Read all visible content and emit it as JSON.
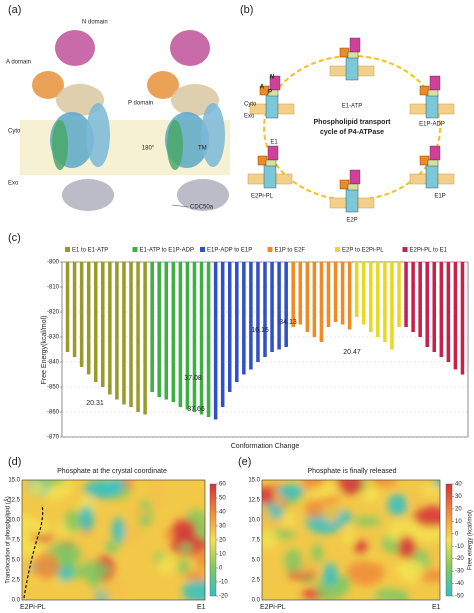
{
  "panels": {
    "a": {
      "label": "(a)",
      "texts": [
        "N domain",
        "A domain",
        "P domain",
        "Cyto",
        "Exo",
        "180°",
        "TM",
        "CDC50a"
      ]
    },
    "b": {
      "label": "(b)",
      "title": [
        "Phospholipid transport",
        "cycle of P4-ATPase"
      ],
      "states": [
        "E1-ATP",
        "E1P-ADP",
        "E1P",
        "E2P",
        "E2Pi-PL",
        "E1"
      ],
      "sides": [
        "Cyto",
        "Exo"
      ],
      "domains": [
        "N",
        "A",
        "P"
      ]
    },
    "c": {
      "label": "(c)"
    },
    "d": {
      "label": "(d)",
      "title": "Phosphate at the crystal coordinate",
      "y_label": "Translocation of phospholipid (Å)",
      "yticks": [
        "0.0",
        "2.5",
        "5.0",
        "7.5",
        "10.0",
        "12.5",
        "15.0"
      ],
      "x_labels": [
        "E2Pi-PL",
        "E1"
      ],
      "colorbar_ticks": [
        60,
        50,
        40,
        30,
        20,
        10,
        0,
        -10,
        -20
      ]
    },
    "e": {
      "label": "(e)",
      "title": "Phosphate is finally released",
      "yticks": [
        "0.0",
        "2.5",
        "5.0",
        "7.5",
        "10.0",
        "12.5",
        "15.0"
      ],
      "x_labels": [
        "E2Pi-PL",
        "E1"
      ],
      "colorbar_ticks": [
        40,
        30,
        20,
        10,
        0,
        -10,
        -20,
        -30,
        -40,
        -50
      ],
      "colorbar_label": "Free energy (kcal/mol)"
    }
  },
  "chart_data": {
    "type": "bar",
    "y_label": "Free Energy(kcal/mol)",
    "x_label": "Conformation Change",
    "ylim": [
      -870,
      -800
    ],
    "yticks": [
      -870,
      -860,
      -850,
      -840,
      -830,
      -820,
      -810,
      -800
    ],
    "grid": true,
    "series": [
      {
        "name": "E1 to E1-ATP",
        "color": "#9a9a2a",
        "values": [
          -836,
          -838,
          -842,
          -845,
          -848,
          -850,
          -853,
          -855,
          -857,
          -858,
          -860,
          -861
        ]
      },
      {
        "name": "E1-ATP to E1P-ADP",
        "color": "#3cb043",
        "values": [
          -852,
          -854,
          -855,
          -856,
          -858,
          -859,
          -860,
          -861,
          -862
        ]
      },
      {
        "name": "E1P-ADP to E1P",
        "color": "#3050c8",
        "values": [
          -863,
          -858,
          -852,
          -848,
          -845,
          -843,
          -840,
          -838,
          -836,
          -835,
          -834
        ]
      },
      {
        "name": "E1P to E2F",
        "color": "#f08a24",
        "values": [
          -826,
          -825,
          -828,
          -830,
          -832,
          -826,
          -824,
          -825,
          -827
        ]
      },
      {
        "name": "E2P to E2Pi-PL",
        "color": "#e8d820",
        "values": [
          -822,
          -825,
          -828,
          -830,
          -832,
          -835,
          -826
        ]
      },
      {
        "name": "E2Pi-PL to E1",
        "color": "#c8204a",
        "values": [
          -826,
          -828,
          -830,
          -834,
          -836,
          -838,
          -840,
          -843,
          -845
        ]
      }
    ],
    "annotations": [
      "20.31",
      "37.66",
      "37.08",
      "16.15",
      "34.13",
      "20.47"
    ]
  }
}
